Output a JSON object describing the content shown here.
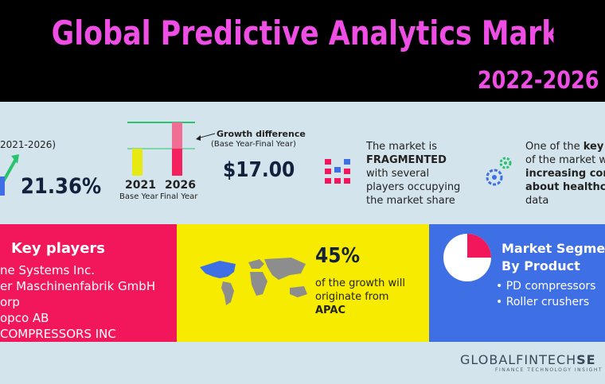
{
  "header": {
    "title": "Global Predictive Analytics Market",
    "years": "2022-2026"
  },
  "cagr": {
    "period": "2021-2026)",
    "value": "21.36%"
  },
  "bars": {
    "label_2021": "2021",
    "sub_2021": "Base Year",
    "label_2026": "2026",
    "sub_2026": "Final Year",
    "colors": {
      "base": "#e7ea12",
      "final_bottom": "#f3225e",
      "final_top": "#f06d94",
      "line_green": "#27c46d"
    }
  },
  "growth_difference": {
    "title": "Growth difference",
    "subtitle": "(Base Year-Final Year)",
    "value": "$17.00"
  },
  "market_structure": {
    "line1": "The market is",
    "line2": "FRAGMENTED",
    "line3": "with several",
    "line4": "players occupying",
    "line5": "the market share"
  },
  "drivers": {
    "line1_a": "One of the ",
    "line1_b": "key dr",
    "line2": "of the market will",
    "line3": "increasing conce",
    "line4": "about healthcar",
    "line5": "data"
  },
  "key_players": {
    "title": "Key players",
    "items": [
      "ne Systems Inc.",
      "er Maschinenfabrik GmbH",
      "orp",
      "opco AB",
      " COMPRESSORS INC"
    ]
  },
  "growth_region": {
    "percent": "45%",
    "line1": "of the growth will",
    "line2": "originate from",
    "region": "APAC"
  },
  "segments": {
    "title_line1": "Market Segme",
    "title_line2": "By Product",
    "items": [
      "PD compressors",
      "Roller crushers"
    ],
    "pie_share": 0.25
  },
  "brand": {
    "name_a": "GLOBALFINTECH",
    "name_b": "SE",
    "tagline": "FINANCE TECHNOLOGY INSIGHT"
  },
  "colors": {
    "pink": "#ee4ee4",
    "red": "#f2175a",
    "yellow": "#f7eb00",
    "blue": "#3f6fe5",
    "navy": "#14213d"
  },
  "icons": [
    "arrow-up-icon",
    "fragmented-blocks-icon",
    "gears-icon",
    "world-map-icon",
    "pie-icon"
  ]
}
